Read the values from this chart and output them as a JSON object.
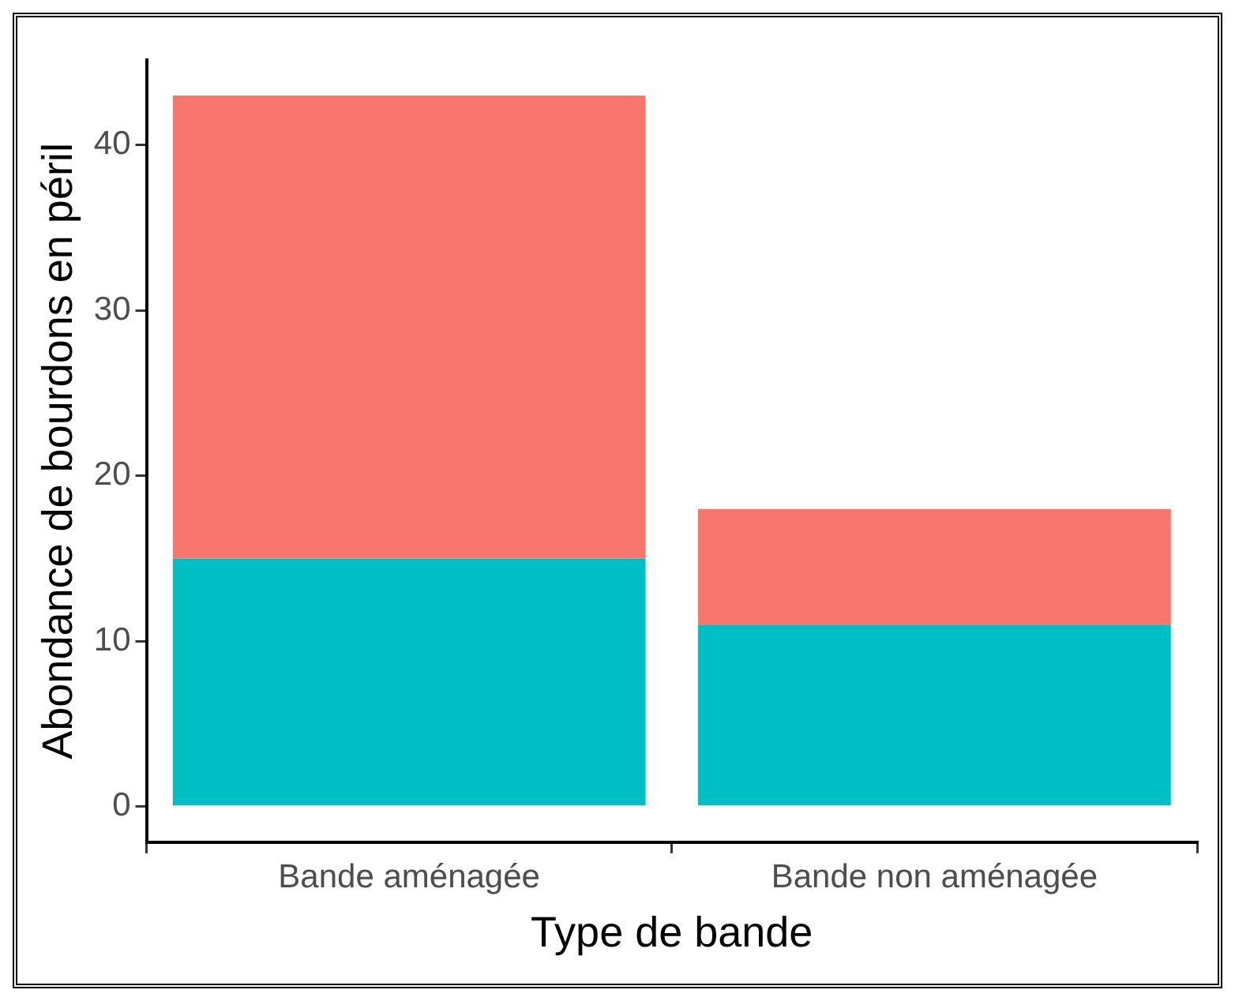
{
  "chart_data": {
    "type": "bar",
    "xlabel": "Type de bande",
    "ylabel": "Abondance de bourdons en péril",
    "categories": [
      "Bande aménagée",
      "Bande non aménagée"
    ],
    "series": [
      {
        "color": "#00bfc4",
        "values": [
          15,
          11
        ]
      },
      {
        "color": "#f8766d",
        "values": [
          28,
          7
        ]
      }
    ],
    "stacked": true,
    "ylim": [
      -2.15,
      45.15
    ],
    "yticks": [
      0,
      10,
      20,
      30,
      40
    ],
    "grid": false,
    "legend": false
  }
}
